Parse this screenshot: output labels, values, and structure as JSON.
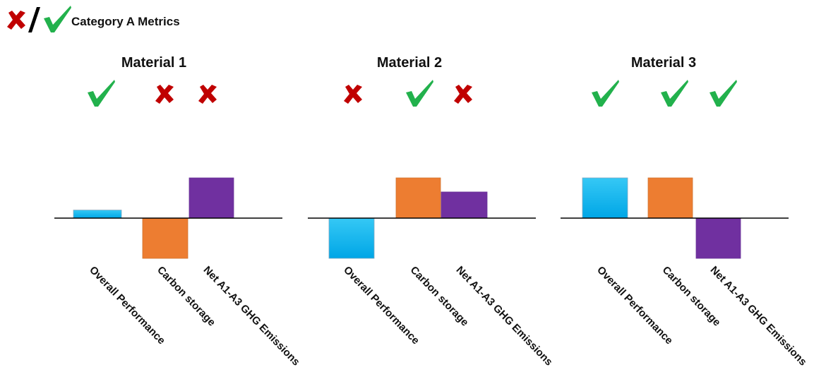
{
  "header": {
    "title": "Category A Metrics"
  },
  "colors": {
    "check": "#22b14c",
    "cross": "#c00000",
    "blue": "#00b0f0",
    "orange": "#ed7d31",
    "purple": "#7030a0"
  },
  "icons": {
    "check": "check-icon",
    "cross": "cross-icon",
    "separator": "slash-icon"
  },
  "chart_data": [
    {
      "type": "bar",
      "title": "Material 1",
      "categories": [
        "Overall Performance",
        "Carbon storage",
        "Net A1-A3 GHG Emissions"
      ],
      "values": [
        0.2,
        -1.0,
        1.0
      ],
      "status": [
        "check",
        "cross",
        "cross"
      ],
      "ylim": [
        -1,
        1
      ],
      "colors": [
        "#00b0f0",
        "#ed7d31",
        "#7030a0"
      ]
    },
    {
      "type": "bar",
      "title": "Material 2",
      "categories": [
        "Overall Performance",
        "Carbon storage",
        "Net A1-A3 GHG Emissions"
      ],
      "values": [
        -1.0,
        1.0,
        0.65
      ],
      "status": [
        "cross",
        "check",
        "cross"
      ],
      "ylim": [
        -1,
        1
      ],
      "colors": [
        "#00b0f0",
        "#ed7d31",
        "#7030a0"
      ]
    },
    {
      "type": "bar",
      "title": "Material 3",
      "categories": [
        "Overall Performance",
        "Carbon storage",
        "Net A1-A3 GHG Emissions"
      ],
      "values": [
        1.0,
        1.0,
        -1.0
      ],
      "status": [
        "check",
        "check",
        "check"
      ],
      "ylim": [
        -1,
        1
      ],
      "colors": [
        "#00b0f0",
        "#ed7d31",
        "#7030a0"
      ]
    }
  ]
}
